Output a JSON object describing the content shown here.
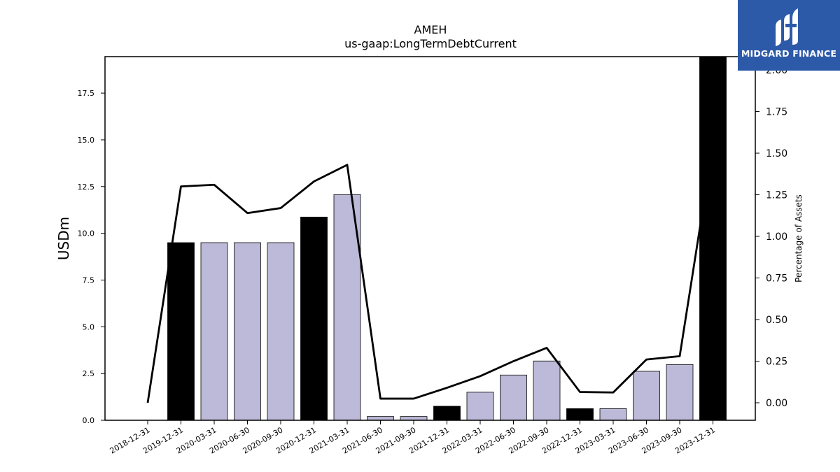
{
  "logo": {
    "text": "MIDGARD FINANCE"
  },
  "chart_data": {
    "type": "bar",
    "title": "AMEH",
    "subtitle": "us-gaap:LongTermDebtCurrent",
    "ylabel": "USDm",
    "y2label": "Percentage of Assets",
    "ylim": [
      0,
      19.45
    ],
    "y2lim": [
      -0.105,
      2.08
    ],
    "yticks": [
      0.0,
      2.5,
      5.0,
      7.5,
      10.0,
      12.5,
      15.0,
      17.5
    ],
    "yticklabels": [
      "0.0",
      "2.5",
      "5.0",
      "7.5",
      "10.0",
      "12.5",
      "15.0",
      "17.5"
    ],
    "y2ticks": [
      0.0,
      0.25,
      0.5,
      0.75,
      1.0,
      1.25,
      1.5,
      1.75,
      2.0
    ],
    "y2ticklabels": [
      "0.00",
      "0.25",
      "0.50",
      "0.75",
      "1.00",
      "1.25",
      "1.50",
      "1.75",
      "2.00"
    ],
    "categories": [
      "2018-12-31",
      "2019-12-31",
      "2020-03-31",
      "2020-06-30",
      "2020-09-30",
      "2020-12-31",
      "2021-03-31",
      "2021-06-30",
      "2021-09-30",
      "2021-12-31",
      "2022-03-31",
      "2022-06-30",
      "2022-09-30",
      "2022-12-31",
      "2023-03-31",
      "2023-06-30",
      "2023-09-30",
      "2023-12-31"
    ],
    "series": [
      {
        "type": "bar",
        "axis": "left",
        "values": [
          0,
          9.5,
          9.5,
          9.5,
          9.5,
          10.87,
          12.07,
          0.2,
          0.2,
          0.75,
          1.5,
          2.42,
          3.17,
          0.62,
          0.62,
          2.62,
          2.98,
          19.45
        ],
        "colors": [
          "#000000",
          "#000000",
          "#bcbad8",
          "#bcbad8",
          "#bcbad8",
          "#000000",
          "#bcbad8",
          "#bcbad8",
          "#bcbad8",
          "#000000",
          "#bcbad8",
          "#bcbad8",
          "#bcbad8",
          "#000000",
          "#bcbad8",
          "#bcbad8",
          "#bcbad8",
          "#000000"
        ]
      },
      {
        "type": "line",
        "axis": "right",
        "color": "#000000",
        "values": [
          0.0,
          1.3,
          1.31,
          1.14,
          1.17,
          1.33,
          1.43,
          0.025,
          0.025,
          0.09,
          0.16,
          0.25,
          0.33,
          0.065,
          0.062,
          0.26,
          0.28,
          1.55
        ]
      }
    ],
    "grid": false,
    "legend": "none"
  }
}
